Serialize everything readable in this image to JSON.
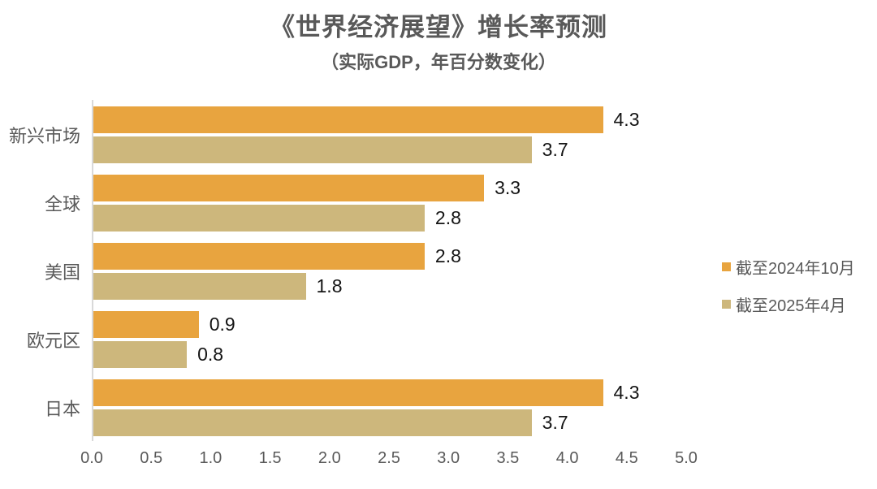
{
  "title": "《世界经济展望》增长率预测",
  "subtitle": "（实际GDP，年百分数变化）",
  "chart_data": {
    "type": "bar",
    "orientation": "horizontal",
    "title": "《世界经济展望》增长率预测",
    "subtitle": "（实际GDP，年百分数变化）",
    "categories": [
      "新兴市场",
      "全球",
      "美国",
      "欧元区",
      "日本"
    ],
    "series": [
      {
        "name": "截至2024年10月",
        "color": "#E8A43F",
        "values": [
          4.3,
          3.3,
          2.8,
          0.9,
          4.3
        ]
      },
      {
        "name": "截至2025年4月",
        "color": "#CDB77C",
        "values": [
          3.7,
          2.8,
          1.8,
          0.8,
          3.7
        ]
      }
    ],
    "xlabel": "",
    "ylabel": "",
    "xlim": [
      0,
      5
    ],
    "x_ticks": [
      "0.0",
      "0.5",
      "1.0",
      "1.5",
      "2.0",
      "2.5",
      "3.0",
      "3.5",
      "4.0",
      "4.5",
      "5.0"
    ],
    "grid": false,
    "legend_position": "right",
    "data_labels": true,
    "axis_line_color": "#D9D9D9",
    "text_color": "#595959",
    "value_label_color": "#141414"
  }
}
